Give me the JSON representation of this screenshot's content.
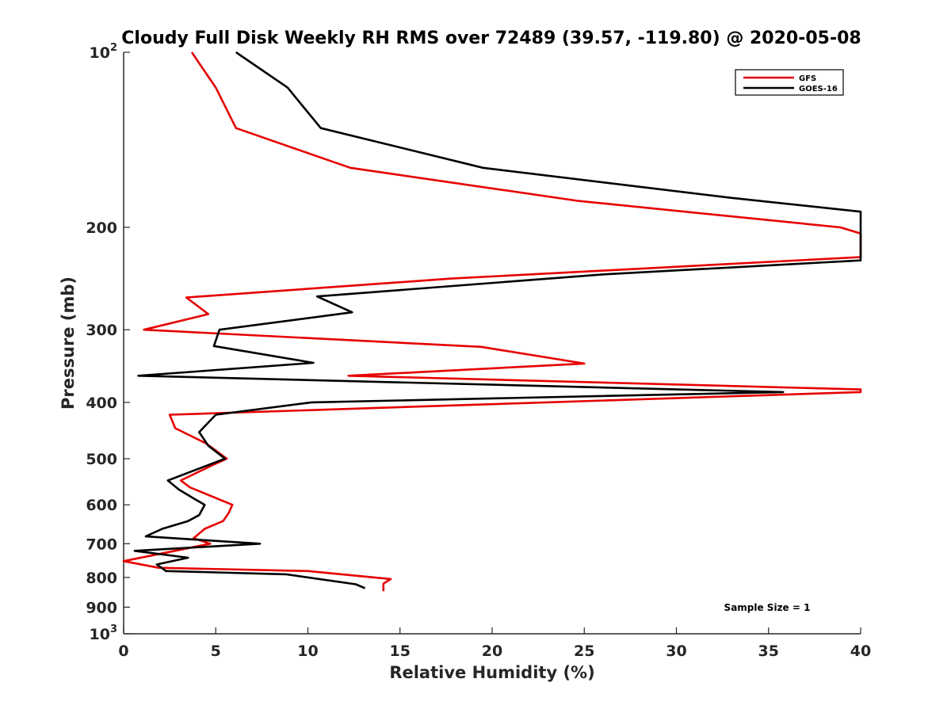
{
  "chart_data": {
    "type": "line",
    "title": "Cloudy Full Disk Weekly RH RMS over 72489 (39.57, -119.80) @ 2020-05-08",
    "xlabel": "Relative Humidity (%)",
    "ylabel": "Pressure (mb)",
    "xlim": [
      0,
      40
    ],
    "ylim": [
      100,
      1000
    ],
    "y_scale": "log",
    "y_reversed": true,
    "grid": false,
    "legend_position": "top-right",
    "x_ticks": [
      "0",
      "5",
      "10",
      "15",
      "20",
      "25",
      "30",
      "35",
      "40"
    ],
    "y_ticks": [
      {
        "value": 100,
        "base": "10",
        "exp": "2"
      },
      {
        "value": 200,
        "label": "200"
      },
      {
        "value": 300,
        "label": "300"
      },
      {
        "value": 400,
        "label": "400"
      },
      {
        "value": 500,
        "label": "500"
      },
      {
        "value": 600,
        "label": "600"
      },
      {
        "value": 700,
        "label": "700"
      },
      {
        "value": 800,
        "label": "800"
      },
      {
        "value": 900,
        "label": "900"
      },
      {
        "value": 1000,
        "base": "10",
        "exp": "3"
      }
    ],
    "annotation": "Sample Size = 1",
    "series": [
      {
        "name": "GFS",
        "color": "#e60000",
        "points": [
          {
            "x": 3.7,
            "y": 100
          },
          {
            "x": 5.0,
            "y": 115
          },
          {
            "x": 6.1,
            "y": 135
          },
          {
            "x": 12.3,
            "y": 158
          },
          {
            "x": 24.6,
            "y": 180
          },
          {
            "x": 38.9,
            "y": 200
          },
          {
            "x": 40.0,
            "y": 205
          },
          {
            "x": 40.0,
            "y": 225
          },
          {
            "x": 17.8,
            "y": 245
          },
          {
            "x": 3.4,
            "y": 264
          },
          {
            "x": 4.6,
            "y": 282
          },
          {
            "x": 1.1,
            "y": 300
          },
          {
            "x": 19.4,
            "y": 321
          },
          {
            "x": 25.0,
            "y": 343
          },
          {
            "x": 12.2,
            "y": 360
          },
          {
            "x": 40.0,
            "y": 380
          },
          {
            "x": 40.0,
            "y": 384
          },
          {
            "x": 2.5,
            "y": 420
          },
          {
            "x": 2.8,
            "y": 443
          },
          {
            "x": 4.5,
            "y": 471
          },
          {
            "x": 5.6,
            "y": 500
          },
          {
            "x": 4.7,
            "y": 515
          },
          {
            "x": 3.1,
            "y": 545
          },
          {
            "x": 3.6,
            "y": 560
          },
          {
            "x": 5.9,
            "y": 600
          },
          {
            "x": 5.7,
            "y": 620
          },
          {
            "x": 5.4,
            "y": 640
          },
          {
            "x": 4.4,
            "y": 660
          },
          {
            "x": 3.8,
            "y": 685
          },
          {
            "x": 4.7,
            "y": 700
          },
          {
            "x": 0.0,
            "y": 750
          },
          {
            "x": 1.9,
            "y": 770
          },
          {
            "x": 10.0,
            "y": 780
          },
          {
            "x": 14.5,
            "y": 805
          },
          {
            "x": 14.1,
            "y": 820
          },
          {
            "x": 14.1,
            "y": 845
          }
        ]
      },
      {
        "name": "GOES-16",
        "color": "#000000",
        "points": [
          {
            "x": 6.1,
            "y": 100
          },
          {
            "x": 8.9,
            "y": 115
          },
          {
            "x": 10.7,
            "y": 135
          },
          {
            "x": 19.5,
            "y": 158
          },
          {
            "x": 33.0,
            "y": 178
          },
          {
            "x": 40.0,
            "y": 188
          },
          {
            "x": 40.0,
            "y": 228
          },
          {
            "x": 26.0,
            "y": 241
          },
          {
            "x": 10.5,
            "y": 263
          },
          {
            "x": 12.4,
            "y": 280
          },
          {
            "x": 5.2,
            "y": 300
          },
          {
            "x": 4.9,
            "y": 320
          },
          {
            "x": 10.3,
            "y": 342
          },
          {
            "x": 0.8,
            "y": 360
          },
          {
            "x": 35.8,
            "y": 384
          },
          {
            "x": 10.2,
            "y": 400
          },
          {
            "x": 5.0,
            "y": 420
          },
          {
            "x": 4.1,
            "y": 450
          },
          {
            "x": 4.6,
            "y": 475
          },
          {
            "x": 5.5,
            "y": 500
          },
          {
            "x": 2.4,
            "y": 545
          },
          {
            "x": 3.0,
            "y": 565
          },
          {
            "x": 3.8,
            "y": 585
          },
          {
            "x": 4.4,
            "y": 600
          },
          {
            "x": 4.1,
            "y": 625
          },
          {
            "x": 3.5,
            "y": 640
          },
          {
            "x": 2.1,
            "y": 660
          },
          {
            "x": 1.2,
            "y": 680
          },
          {
            "x": 7.4,
            "y": 700
          },
          {
            "x": 0.6,
            "y": 720
          },
          {
            "x": 3.5,
            "y": 740
          },
          {
            "x": 1.8,
            "y": 760
          },
          {
            "x": 2.3,
            "y": 780
          },
          {
            "x": 8.8,
            "y": 790
          },
          {
            "x": 12.6,
            "y": 822
          },
          {
            "x": 13.1,
            "y": 835
          }
        ]
      }
    ]
  }
}
